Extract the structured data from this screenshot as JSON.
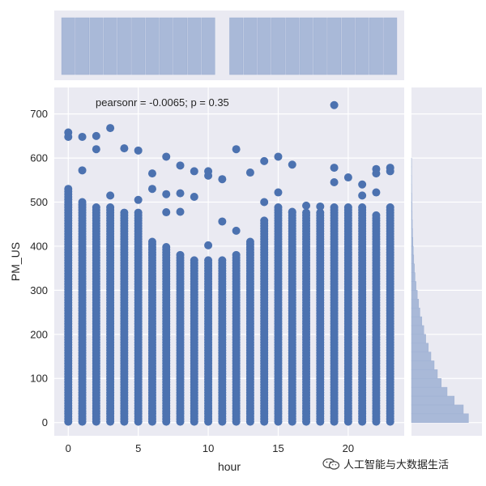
{
  "chart_data": {
    "type": "scatter",
    "subtype": "jointplot",
    "xlabel": "hour",
    "ylabel": "PM_US",
    "xlim": [
      -1,
      24
    ],
    "ylim": [
      -30,
      760
    ],
    "xticks": [
      0,
      5,
      10,
      15,
      20
    ],
    "yticks": [
      0,
      100,
      200,
      300,
      400,
      500,
      600,
      700
    ],
    "annotation": "pearsonr = -0.0065; p = 0.35",
    "grid": true,
    "colors": {
      "points": "#4c72b0",
      "hist": "#a9b9d8",
      "panel": "#eaeaf2",
      "grid": "#ffffff"
    },
    "column_top": [
      535,
      500,
      490,
      490,
      480,
      480,
      415,
      400,
      380,
      370,
      370,
      370,
      380,
      410,
      460,
      490,
      480,
      480,
      480,
      490,
      490,
      490,
      475,
      490
    ],
    "outliers": [
      {
        "x": 0,
        "y": 658
      },
      {
        "x": 0,
        "y": 648
      },
      {
        "x": 1,
        "y": 648
      },
      {
        "x": 1,
        "y": 572
      },
      {
        "x": 2,
        "y": 650
      },
      {
        "x": 2,
        "y": 620
      },
      {
        "x": 3,
        "y": 668
      },
      {
        "x": 3,
        "y": 515
      },
      {
        "x": 4,
        "y": 622
      },
      {
        "x": 5,
        "y": 617
      },
      {
        "x": 5,
        "y": 505
      },
      {
        "x": 6,
        "y": 565
      },
      {
        "x": 6,
        "y": 530
      },
      {
        "x": 7,
        "y": 603
      },
      {
        "x": 7,
        "y": 518
      },
      {
        "x": 7,
        "y": 477
      },
      {
        "x": 8,
        "y": 583
      },
      {
        "x": 8,
        "y": 520
      },
      {
        "x": 8,
        "y": 478
      },
      {
        "x": 9,
        "y": 570
      },
      {
        "x": 9,
        "y": 512
      },
      {
        "x": 10,
        "y": 570
      },
      {
        "x": 10,
        "y": 560
      },
      {
        "x": 10,
        "y": 402
      },
      {
        "x": 11,
        "y": 552
      },
      {
        "x": 11,
        "y": 456
      },
      {
        "x": 12,
        "y": 620
      },
      {
        "x": 12,
        "y": 435
      },
      {
        "x": 13,
        "y": 567
      },
      {
        "x": 14,
        "y": 593
      },
      {
        "x": 14,
        "y": 500
      },
      {
        "x": 15,
        "y": 603
      },
      {
        "x": 15,
        "y": 522
      },
      {
        "x": 16,
        "y": 585
      },
      {
        "x": 16,
        "y": 478
      },
      {
        "x": 17,
        "y": 492
      },
      {
        "x": 18,
        "y": 490
      },
      {
        "x": 19,
        "y": 720
      },
      {
        "x": 19,
        "y": 578
      },
      {
        "x": 19,
        "y": 545
      },
      {
        "x": 20,
        "y": 556
      },
      {
        "x": 21,
        "y": 540
      },
      {
        "x": 21,
        "y": 515
      },
      {
        "x": 22,
        "y": 575
      },
      {
        "x": 22,
        "y": 565
      },
      {
        "x": 22,
        "y": 522
      },
      {
        "x": 23,
        "y": 578
      },
      {
        "x": 23,
        "y": 570
      }
    ],
    "top_hist_counts": [
      1,
      1,
      1,
      1,
      1,
      1,
      1,
      1,
      1,
      1,
      1,
      0,
      1,
      1,
      1,
      1,
      1,
      1,
      1,
      1,
      1,
      1,
      1,
      1
    ],
    "right_hist": [
      {
        "y": 0,
        "count": 0.88
      },
      {
        "y": 20,
        "count": 0.8
      },
      {
        "y": 40,
        "count": 0.66
      },
      {
        "y": 60,
        "count": 0.55
      },
      {
        "y": 80,
        "count": 0.46
      },
      {
        "y": 100,
        "count": 0.4
      },
      {
        "y": 120,
        "count": 0.35
      },
      {
        "y": 140,
        "count": 0.3
      },
      {
        "y": 160,
        "count": 0.26
      },
      {
        "y": 180,
        "count": 0.22
      },
      {
        "y": 200,
        "count": 0.19
      },
      {
        "y": 220,
        "count": 0.16
      },
      {
        "y": 240,
        "count": 0.13
      },
      {
        "y": 260,
        "count": 0.11
      },
      {
        "y": 280,
        "count": 0.09
      },
      {
        "y": 300,
        "count": 0.07
      },
      {
        "y": 320,
        "count": 0.055
      },
      {
        "y": 340,
        "count": 0.045
      },
      {
        "y": 360,
        "count": 0.035
      },
      {
        "y": 380,
        "count": 0.028
      },
      {
        "y": 400,
        "count": 0.022
      },
      {
        "y": 420,
        "count": 0.017
      },
      {
        "y": 440,
        "count": 0.013
      },
      {
        "y": 460,
        "count": 0.01
      },
      {
        "y": 480,
        "count": 0.008
      },
      {
        "y": 500,
        "count": 0.006
      },
      {
        "y": 520,
        "count": 0.004
      },
      {
        "y": 540,
        "count": 0.003
      },
      {
        "y": 560,
        "count": 0.002
      },
      {
        "y": 580,
        "count": 0.002
      }
    ]
  },
  "watermark": {
    "text": "人工智能与大数据生活",
    "icon": "wechat-icon"
  }
}
